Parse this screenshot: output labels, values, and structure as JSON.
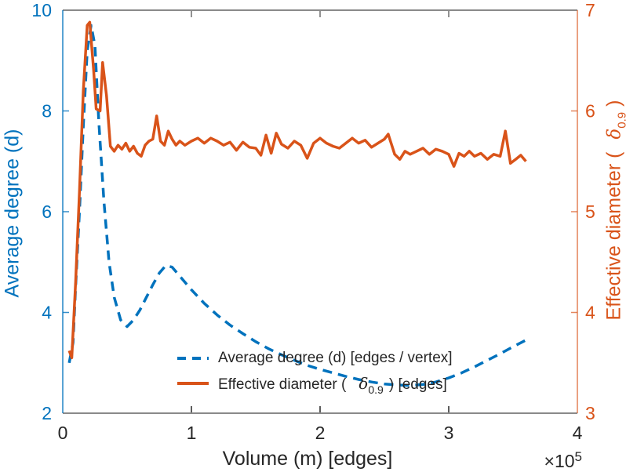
{
  "figure": {
    "background": "#ffffff",
    "left_axis": {
      "label": "Average degree (d)",
      "color": "#0072BD",
      "tick_labels": [
        "2",
        "4",
        "6",
        "8",
        "10"
      ],
      "tick_values": [
        2,
        4,
        6,
        8,
        10
      ]
    },
    "right_axis": {
      "label_prefix": "Effective diameter (",
      "delta": "δ",
      "delta_sub": "0.9",
      "label_suffix": ")",
      "color": "#D95319",
      "tick_labels": [
        "3",
        "4",
        "5",
        "6",
        "7"
      ],
      "tick_values": [
        3,
        4,
        5,
        6,
        7
      ]
    },
    "x_axis": {
      "label": "Volume (m) [edges]",
      "tick_labels": [
        "0",
        "1",
        "2",
        "3",
        "4"
      ],
      "tick_values": [
        0,
        1,
        2,
        3,
        4
      ],
      "multiplier_base": "×10",
      "multiplier_exponent": "5",
      "tick_color": "#262626",
      "box_line_color": "#8a8a8a"
    },
    "legend": {
      "entry1": {
        "label": "Average degree (d) [edges / vertex]",
        "color": "#0072BD",
        "style": "dashed"
      },
      "entry2": {
        "label_prefix": "Effective diameter (",
        "delta": "δ",
        "delta_sub": "0.9",
        "label_suffix": ") [edges]",
        "color": "#D95319",
        "style": "solid"
      }
    }
  },
  "chart_data": {
    "type": "line",
    "title": "",
    "xlabel": "Volume (m) [edges]",
    "x_multiplier": "×10^5",
    "xlim": [
      0,
      4
    ],
    "left_ylim": [
      2,
      10
    ],
    "right_ylim": [
      3,
      7
    ],
    "grid": false,
    "legend_position": "inside-bottom-center",
    "series": [
      {
        "name": "Average degree (d) [edges / vertex]",
        "axis": "left",
        "color": "#0072BD",
        "style": "dashed",
        "x": [
          0.05,
          0.08,
          0.1,
          0.13,
          0.16,
          0.19,
          0.22,
          0.25,
          0.28,
          0.32,
          0.36,
          0.4,
          0.45,
          0.5,
          0.55,
          0.6,
          0.65,
          0.7,
          0.75,
          0.8,
          0.85,
          0.9,
          0.95,
          1.0,
          1.1,
          1.2,
          1.3,
          1.4,
          1.5,
          1.6,
          1.7,
          1.8,
          1.9,
          2.0,
          2.1,
          2.2,
          2.3,
          2.4,
          2.5,
          2.6,
          2.7,
          2.8,
          2.9,
          3.0,
          3.1,
          3.2,
          3.3,
          3.4,
          3.5,
          3.6
        ],
        "y": [
          3.0,
          3.4,
          4.5,
          6.0,
          7.7,
          9.2,
          9.7,
          9.3,
          7.8,
          6.2,
          5.0,
          4.3,
          3.85,
          3.72,
          3.85,
          4.05,
          4.3,
          4.55,
          4.78,
          4.93,
          4.9,
          4.75,
          4.6,
          4.45,
          4.18,
          3.95,
          3.75,
          3.58,
          3.42,
          3.28,
          3.16,
          3.05,
          2.95,
          2.87,
          2.8,
          2.73,
          2.67,
          2.62,
          2.58,
          2.56,
          2.55,
          2.57,
          2.62,
          2.7,
          2.8,
          2.92,
          3.05,
          3.18,
          3.32,
          3.45
        ]
      },
      {
        "name": "Effective diameter ( δ_0.9 ) [edges]",
        "axis": "right",
        "color": "#D95319",
        "style": "solid",
        "x": [
          0.05,
          0.07,
          0.1,
          0.13,
          0.16,
          0.19,
          0.21,
          0.24,
          0.26,
          0.29,
          0.31,
          0.34,
          0.37,
          0.4,
          0.43,
          0.46,
          0.49,
          0.52,
          0.55,
          0.58,
          0.61,
          0.64,
          0.67,
          0.7,
          0.73,
          0.76,
          0.79,
          0.82,
          0.85,
          0.88,
          0.91,
          0.95,
          1.0,
          1.05,
          1.1,
          1.15,
          1.2,
          1.25,
          1.3,
          1.35,
          1.4,
          1.45,
          1.5,
          1.54,
          1.58,
          1.62,
          1.66,
          1.7,
          1.75,
          1.8,
          1.85,
          1.9,
          1.95,
          2.0,
          2.05,
          2.1,
          2.15,
          2.2,
          2.25,
          2.3,
          2.35,
          2.4,
          2.45,
          2.5,
          2.53,
          2.58,
          2.62,
          2.66,
          2.7,
          2.75,
          2.8,
          2.85,
          2.9,
          2.95,
          3.0,
          3.04,
          3.08,
          3.12,
          3.16,
          3.2,
          3.25,
          3.3,
          3.35,
          3.4,
          3.44,
          3.48,
          3.52,
          3.56,
          3.6
        ],
        "y": [
          3.62,
          3.55,
          4.3,
          5.2,
          6.2,
          6.85,
          6.88,
          6.4,
          6.02,
          6.0,
          6.48,
          6.15,
          5.65,
          5.6,
          5.66,
          5.62,
          5.68,
          5.6,
          5.65,
          5.58,
          5.55,
          5.66,
          5.7,
          5.72,
          5.95,
          5.7,
          5.66,
          5.8,
          5.72,
          5.66,
          5.7,
          5.66,
          5.7,
          5.73,
          5.68,
          5.73,
          5.7,
          5.66,
          5.69,
          5.61,
          5.69,
          5.64,
          5.63,
          5.56,
          5.76,
          5.58,
          5.78,
          5.67,
          5.63,
          5.7,
          5.66,
          5.53,
          5.68,
          5.73,
          5.68,
          5.65,
          5.63,
          5.68,
          5.73,
          5.68,
          5.71,
          5.64,
          5.68,
          5.72,
          5.77,
          5.57,
          5.52,
          5.6,
          5.57,
          5.6,
          5.63,
          5.57,
          5.62,
          5.6,
          5.57,
          5.45,
          5.58,
          5.55,
          5.6,
          5.55,
          5.58,
          5.52,
          5.57,
          5.55,
          5.8,
          5.48,
          5.52,
          5.56,
          5.5
        ]
      }
    ]
  }
}
